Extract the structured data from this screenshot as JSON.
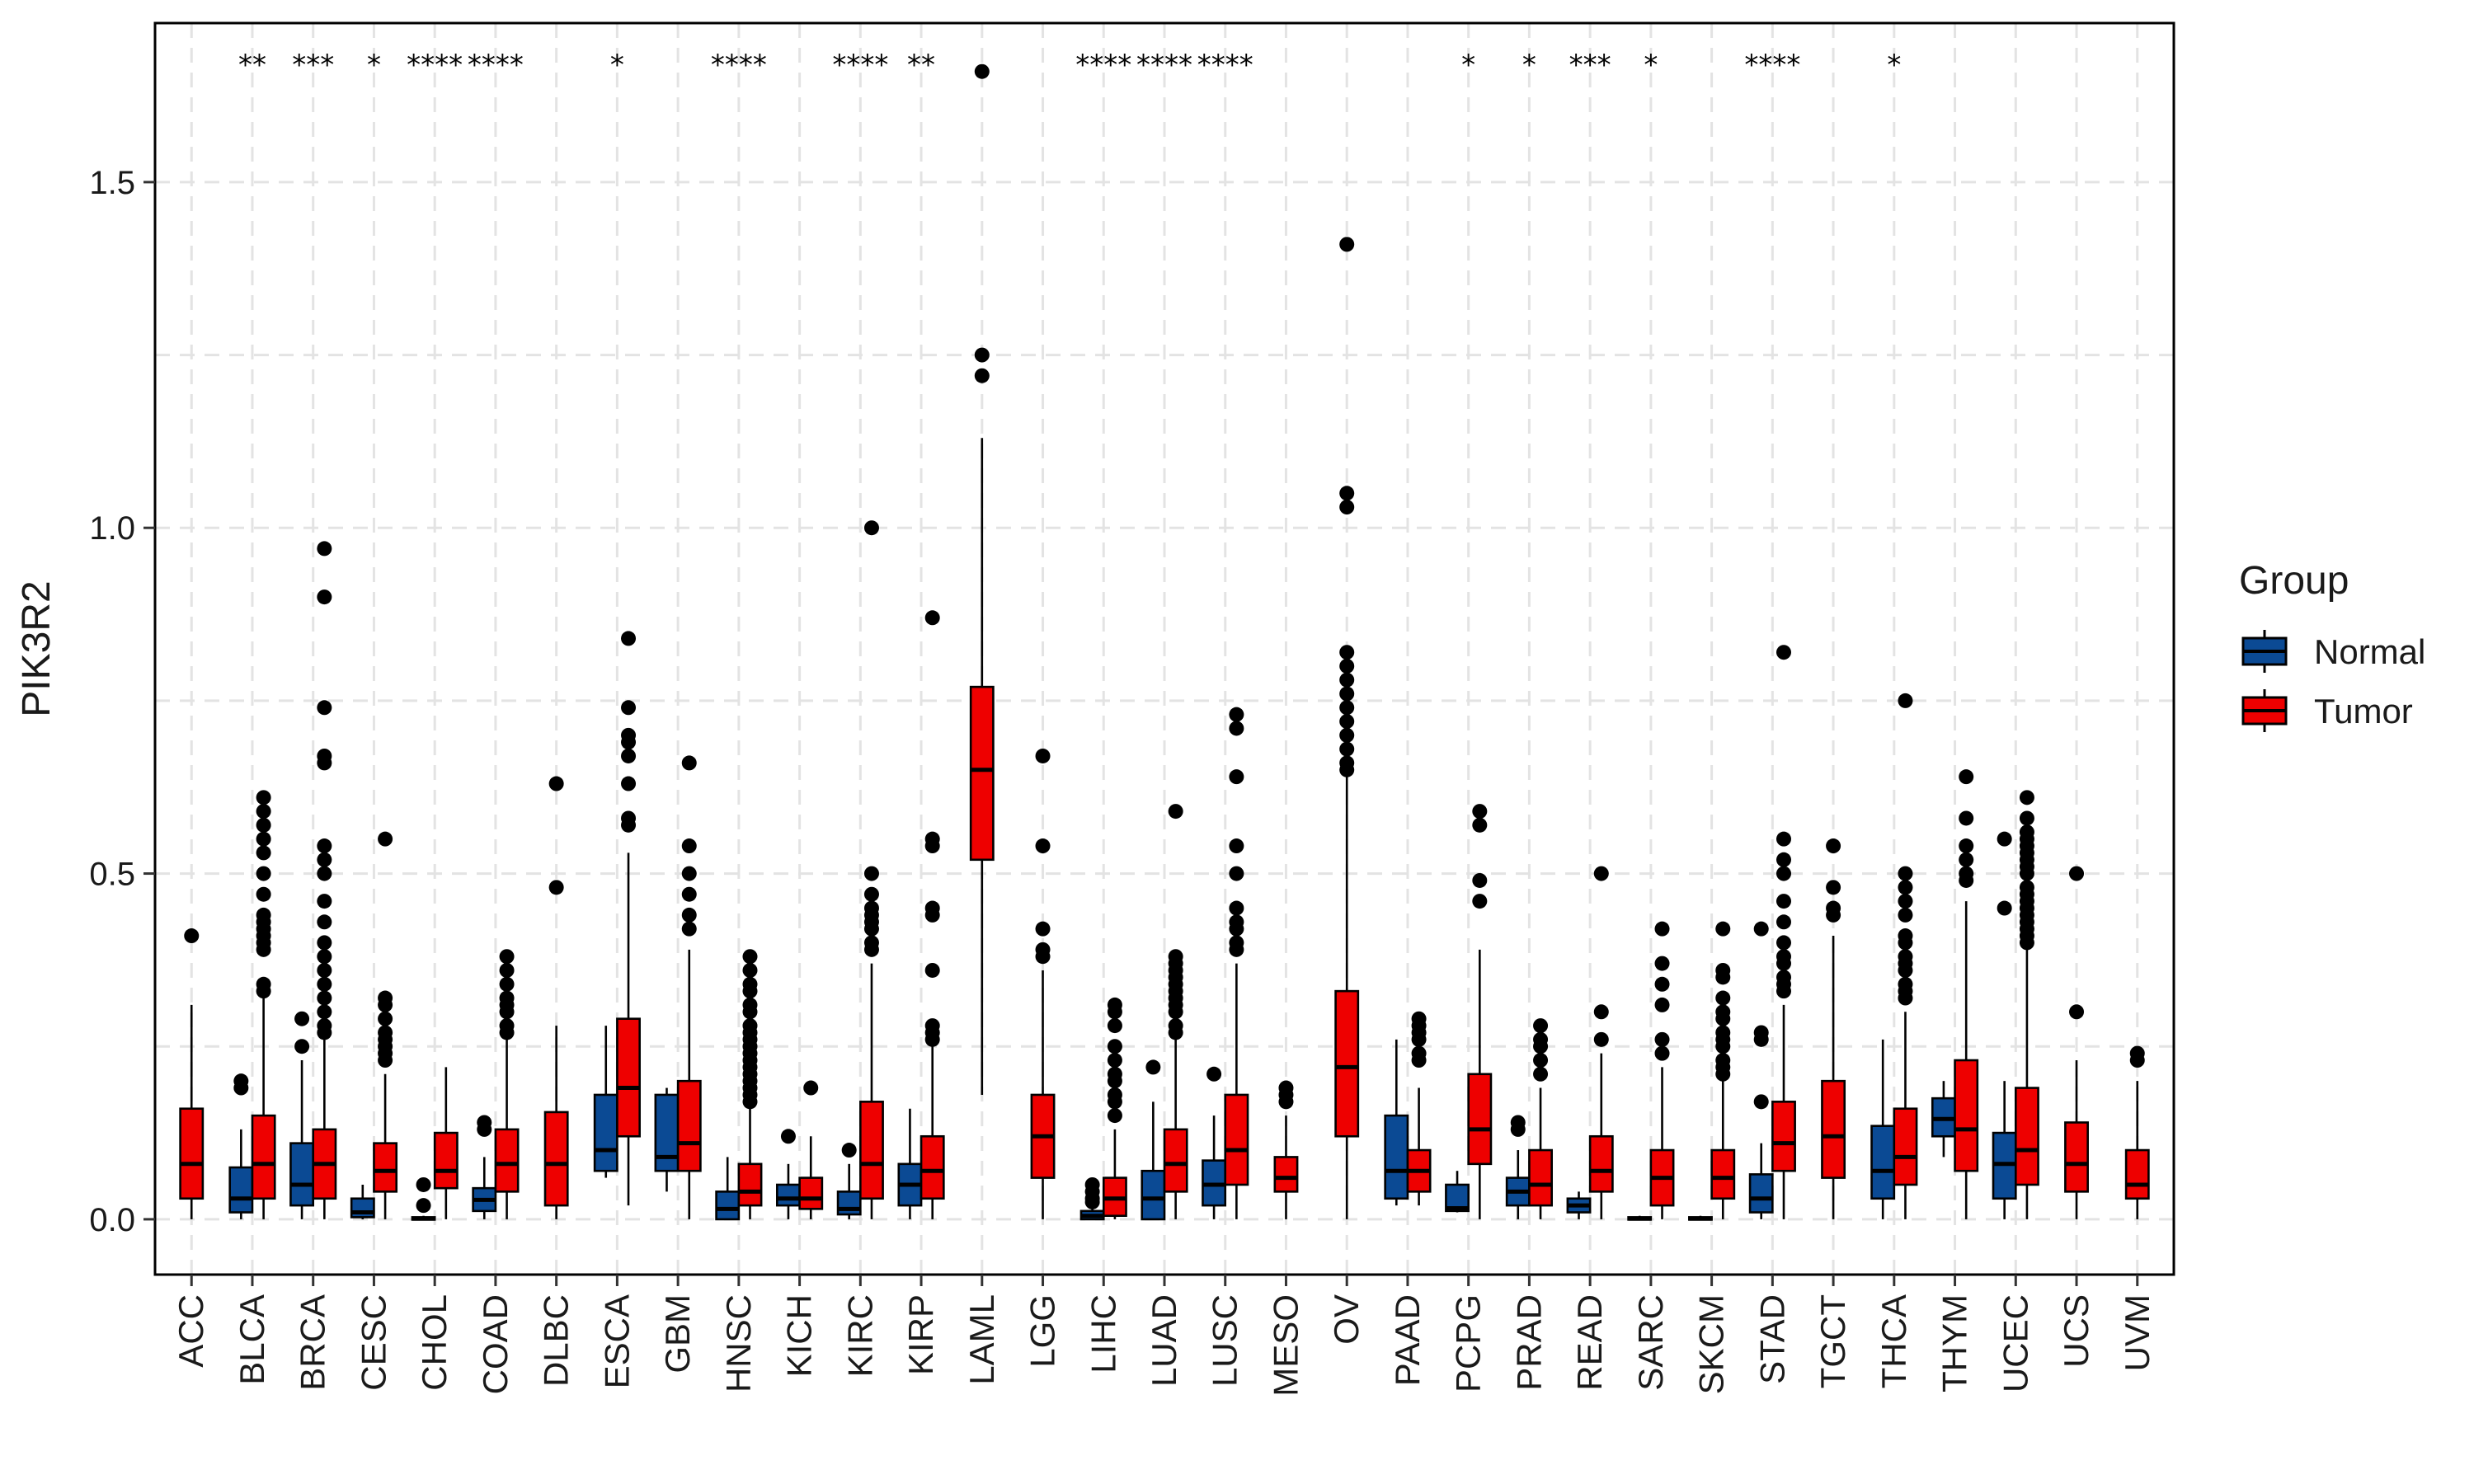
{
  "chart_data": {
    "type": "boxplot",
    "title": "",
    "xlabel": "",
    "ylabel": "PIK3R2",
    "ylim": [
      -0.08,
      1.73
    ],
    "yticks": [
      0.0,
      0.5,
      1.0,
      1.5
    ],
    "ytick_labels": [
      "0.0",
      "0.5",
      "1.0",
      "1.5"
    ],
    "grid": true,
    "legend": {
      "title": "Group",
      "position": "right",
      "entries": [
        {
          "name": "Normal",
          "color": "#0b4a94"
        },
        {
          "name": "Tumor",
          "color": "#ee0000"
        }
      ]
    },
    "categories": [
      {
        "name": "ACC",
        "sig": "",
        "normal": null,
        "tumor": {
          "q1": 0.03,
          "med": 0.08,
          "q3": 0.16,
          "lo": 0.0,
          "hi": 0.31,
          "out": [
            0.41
          ]
        }
      },
      {
        "name": "BLCA",
        "sig": "**",
        "normal": {
          "q1": 0.01,
          "med": 0.03,
          "q3": 0.075,
          "lo": 0.0,
          "hi": 0.13,
          "out": [
            0.19,
            0.2
          ]
        },
        "tumor": {
          "q1": 0.03,
          "med": 0.08,
          "q3": 0.15,
          "lo": 0.0,
          "hi": 0.32,
          "out": [
            0.33,
            0.34,
            0.39,
            0.4,
            0.41,
            0.42,
            0.43,
            0.44,
            0.47,
            0.5,
            0.53,
            0.55,
            0.57,
            0.59,
            0.61
          ]
        }
      },
      {
        "name": "BRCA",
        "sig": "***",
        "normal": {
          "q1": 0.02,
          "med": 0.05,
          "q3": 0.11,
          "lo": 0.0,
          "hi": 0.23,
          "out": [
            0.25,
            0.29
          ]
        },
        "tumor": {
          "q1": 0.03,
          "med": 0.08,
          "q3": 0.13,
          "lo": 0.0,
          "hi": 0.26,
          "out": [
            0.27,
            0.28,
            0.3,
            0.32,
            0.34,
            0.36,
            0.38,
            0.4,
            0.43,
            0.46,
            0.5,
            0.52,
            0.54,
            0.66,
            0.67,
            0.74,
            0.9,
            0.97
          ]
        }
      },
      {
        "name": "CESC",
        "sig": "*",
        "normal": {
          "q1": 0.003,
          "med": 0.01,
          "q3": 0.03,
          "lo": 0.0,
          "hi": 0.05,
          "out": []
        },
        "tumor": {
          "q1": 0.04,
          "med": 0.07,
          "q3": 0.11,
          "lo": 0.0,
          "hi": 0.21,
          "out": [
            0.23,
            0.24,
            0.25,
            0.26,
            0.27,
            0.29,
            0.31,
            0.32,
            0.55
          ]
        }
      },
      {
        "name": "CHOL",
        "sig": "****",
        "normal": {
          "q1": 0.0,
          "med": 0.001,
          "q3": 0.003,
          "lo": 0.0,
          "hi": 0.005,
          "out": [
            0.02,
            0.05
          ]
        },
        "tumor": {
          "q1": 0.045,
          "med": 0.07,
          "q3": 0.125,
          "lo": 0.0,
          "hi": 0.22,
          "out": []
        }
      },
      {
        "name": "COAD",
        "sig": "****",
        "normal": {
          "q1": 0.012,
          "med": 0.028,
          "q3": 0.045,
          "lo": 0.0,
          "hi": 0.09,
          "out": [
            0.13,
            0.14
          ]
        },
        "tumor": {
          "q1": 0.04,
          "med": 0.08,
          "q3": 0.13,
          "lo": 0.0,
          "hi": 0.26,
          "out": [
            0.27,
            0.28,
            0.3,
            0.31,
            0.32,
            0.34,
            0.36,
            0.38
          ]
        }
      },
      {
        "name": "DLBC",
        "sig": "",
        "normal": null,
        "tumor": {
          "q1": 0.02,
          "med": 0.08,
          "q3": 0.155,
          "lo": 0.0,
          "hi": 0.28,
          "out": [
            0.48,
            0.63
          ]
        }
      },
      {
        "name": "ESCA",
        "sig": "*",
        "normal": {
          "q1": 0.07,
          "med": 0.1,
          "q3": 0.18,
          "lo": 0.06,
          "hi": 0.28,
          "out": []
        },
        "tumor": {
          "q1": 0.12,
          "med": 0.19,
          "q3": 0.29,
          "lo": 0.02,
          "hi": 0.53,
          "out": [
            0.57,
            0.58,
            0.63,
            0.67,
            0.69,
            0.7,
            0.74,
            0.84
          ]
        }
      },
      {
        "name": "GBM",
        "sig": "",
        "normal": {
          "q1": 0.07,
          "med": 0.09,
          "q3": 0.18,
          "lo": 0.04,
          "hi": 0.19,
          "out": []
        },
        "tumor": {
          "q1": 0.07,
          "med": 0.11,
          "q3": 0.2,
          "lo": 0.0,
          "hi": 0.39,
          "out": [
            0.42,
            0.44,
            0.47,
            0.5,
            0.54,
            0.66
          ]
        }
      },
      {
        "name": "HNSC",
        "sig": "****",
        "normal": {
          "q1": 0.0,
          "med": 0.015,
          "q3": 0.04,
          "lo": 0.0,
          "hi": 0.09,
          "out": []
        },
        "tumor": {
          "q1": 0.02,
          "med": 0.04,
          "q3": 0.08,
          "lo": 0.0,
          "hi": 0.16,
          "out": [
            0.17,
            0.18,
            0.19,
            0.2,
            0.21,
            0.22,
            0.23,
            0.24,
            0.25,
            0.26,
            0.27,
            0.28,
            0.3,
            0.31,
            0.33,
            0.34,
            0.36,
            0.38
          ]
        }
      },
      {
        "name": "KICH",
        "sig": "",
        "normal": {
          "q1": 0.02,
          "med": 0.03,
          "q3": 0.05,
          "lo": 0.0,
          "hi": 0.08,
          "out": [
            0.12
          ]
        },
        "tumor": {
          "q1": 0.015,
          "med": 0.03,
          "q3": 0.06,
          "lo": 0.0,
          "hi": 0.12,
          "out": [
            0.19
          ]
        }
      },
      {
        "name": "KIRC",
        "sig": "****",
        "normal": {
          "q1": 0.007,
          "med": 0.015,
          "q3": 0.04,
          "lo": 0.0,
          "hi": 0.08,
          "out": [
            0.1
          ]
        },
        "tumor": {
          "q1": 0.03,
          "med": 0.08,
          "q3": 0.17,
          "lo": 0.0,
          "hi": 0.37,
          "out": [
            0.39,
            0.4,
            0.42,
            0.43,
            0.44,
            0.45,
            0.47,
            0.5,
            1.0
          ]
        }
      },
      {
        "name": "KIRP",
        "sig": "**",
        "normal": {
          "q1": 0.02,
          "med": 0.05,
          "q3": 0.08,
          "lo": 0.0,
          "hi": 0.16,
          "out": []
        },
        "tumor": {
          "q1": 0.03,
          "med": 0.07,
          "q3": 0.12,
          "lo": 0.0,
          "hi": 0.25,
          "out": [
            0.26,
            0.27,
            0.28,
            0.36,
            0.44,
            0.45,
            0.54,
            0.55,
            0.87
          ]
        }
      },
      {
        "name": "LAML",
        "sig": "",
        "normal": null,
        "tumor": {
          "q1": 0.52,
          "med": 0.65,
          "q3": 0.77,
          "lo": 0.18,
          "hi": 1.13,
          "out": [
            1.22,
            1.25,
            1.66
          ]
        }
      },
      {
        "name": "LGG",
        "sig": "",
        "normal": null,
        "tumor": {
          "q1": 0.06,
          "med": 0.12,
          "q3": 0.18,
          "lo": 0.0,
          "hi": 0.36,
          "out": [
            0.38,
            0.39,
            0.42,
            0.54,
            0.67
          ]
        }
      },
      {
        "name": "LIHC",
        "sig": "****",
        "normal": {
          "q1": 0.0,
          "med": 0.005,
          "q3": 0.012,
          "lo": 0.0,
          "hi": 0.02,
          "out": [
            0.025,
            0.03,
            0.04,
            0.05
          ]
        },
        "tumor": {
          "q1": 0.005,
          "med": 0.03,
          "q3": 0.06,
          "lo": 0.0,
          "hi": 0.13,
          "out": [
            0.15,
            0.17,
            0.18,
            0.2,
            0.21,
            0.23,
            0.25,
            0.28,
            0.3,
            0.31
          ]
        }
      },
      {
        "name": "LUAD",
        "sig": "****",
        "normal": {
          "q1": 0.0,
          "med": 0.03,
          "q3": 0.07,
          "lo": 0.0,
          "hi": 0.17,
          "out": [
            0.22
          ]
        },
        "tumor": {
          "q1": 0.04,
          "med": 0.08,
          "q3": 0.13,
          "lo": 0.0,
          "hi": 0.26,
          "out": [
            0.27,
            0.28,
            0.3,
            0.31,
            0.32,
            0.33,
            0.34,
            0.35,
            0.36,
            0.37,
            0.38,
            0.59
          ]
        }
      },
      {
        "name": "LUSC",
        "sig": "****",
        "normal": {
          "q1": 0.02,
          "med": 0.05,
          "q3": 0.085,
          "lo": 0.0,
          "hi": 0.15,
          "out": [
            0.21
          ]
        },
        "tumor": {
          "q1": 0.05,
          "med": 0.1,
          "q3": 0.18,
          "lo": 0.0,
          "hi": 0.37,
          "out": [
            0.39,
            0.4,
            0.42,
            0.43,
            0.45,
            0.5,
            0.54,
            0.64,
            0.71,
            0.73
          ]
        }
      },
      {
        "name": "MESO",
        "sig": "",
        "normal": null,
        "tumor": {
          "q1": 0.04,
          "med": 0.06,
          "q3": 0.09,
          "lo": 0.0,
          "hi": 0.15,
          "out": [
            0.17,
            0.18,
            0.19
          ]
        }
      },
      {
        "name": "OV",
        "sig": "",
        "normal": null,
        "tumor": {
          "q1": 0.12,
          "med": 0.22,
          "q3": 0.33,
          "lo": 0.0,
          "hi": 0.64,
          "out": [
            0.65,
            0.66,
            0.68,
            0.7,
            0.72,
            0.74,
            0.76,
            0.78,
            0.8,
            0.82,
            1.03,
            1.05,
            1.41
          ]
        }
      },
      {
        "name": "PAAD",
        "sig": "",
        "normal": {
          "q1": 0.03,
          "med": 0.07,
          "q3": 0.15,
          "lo": 0.02,
          "hi": 0.26,
          "out": []
        },
        "tumor": {
          "q1": 0.04,
          "med": 0.07,
          "q3": 0.1,
          "lo": 0.02,
          "hi": 0.19,
          "out": [
            0.23,
            0.24,
            0.26,
            0.27,
            0.28,
            0.29
          ]
        }
      },
      {
        "name": "PCPG",
        "sig": "*",
        "normal": {
          "q1": 0.012,
          "med": 0.016,
          "q3": 0.05,
          "lo": 0.01,
          "hi": 0.07,
          "out": []
        },
        "tumor": {
          "q1": 0.08,
          "med": 0.13,
          "q3": 0.21,
          "lo": 0.0,
          "hi": 0.39,
          "out": [
            0.46,
            0.49,
            0.57,
            0.59
          ]
        }
      },
      {
        "name": "PRAD",
        "sig": "*",
        "normal": {
          "q1": 0.02,
          "med": 0.04,
          "q3": 0.06,
          "lo": 0.0,
          "hi": 0.1,
          "out": [
            0.13,
            0.14
          ]
        },
        "tumor": {
          "q1": 0.02,
          "med": 0.05,
          "q3": 0.1,
          "lo": 0.0,
          "hi": 0.19,
          "out": [
            0.21,
            0.23,
            0.25,
            0.26,
            0.28
          ]
        }
      },
      {
        "name": "READ",
        "sig": "***",
        "normal": {
          "q1": 0.01,
          "med": 0.02,
          "q3": 0.03,
          "lo": 0.0,
          "hi": 0.04,
          "out": []
        },
        "tumor": {
          "q1": 0.04,
          "med": 0.07,
          "q3": 0.12,
          "lo": 0.0,
          "hi": 0.24,
          "out": [
            0.26,
            0.3,
            0.5
          ]
        }
      },
      {
        "name": "SARC",
        "sig": "*",
        "normal": {
          "q1": 0.0,
          "med": 0.001,
          "q3": 0.003,
          "lo": 0.0,
          "hi": 0.005,
          "out": []
        },
        "tumor": {
          "q1": 0.02,
          "med": 0.06,
          "q3": 0.1,
          "lo": 0.0,
          "hi": 0.22,
          "out": [
            0.24,
            0.26,
            0.31,
            0.34,
            0.37,
            0.42
          ]
        }
      },
      {
        "name": "SKCM",
        "sig": "",
        "normal": {
          "q1": 0.0,
          "med": 0.001,
          "q3": 0.003,
          "lo": 0.0,
          "hi": 0.005,
          "out": []
        },
        "tumor": {
          "q1": 0.03,
          "med": 0.06,
          "q3": 0.1,
          "lo": 0.0,
          "hi": 0.2,
          "out": [
            0.21,
            0.22,
            0.23,
            0.25,
            0.26,
            0.27,
            0.29,
            0.3,
            0.32,
            0.35,
            0.36,
            0.42
          ]
        }
      },
      {
        "name": "STAD",
        "sig": "****",
        "normal": {
          "q1": 0.01,
          "med": 0.03,
          "q3": 0.065,
          "lo": 0.0,
          "hi": 0.11,
          "out": [
            0.17,
            0.26,
            0.27,
            0.42
          ]
        },
        "tumor": {
          "q1": 0.07,
          "med": 0.11,
          "q3": 0.17,
          "lo": 0.0,
          "hi": 0.31,
          "out": [
            0.33,
            0.34,
            0.35,
            0.37,
            0.38,
            0.4,
            0.43,
            0.46,
            0.5,
            0.52,
            0.55,
            0.82
          ]
        }
      },
      {
        "name": "TGCT",
        "sig": "",
        "normal": null,
        "tumor": {
          "q1": 0.06,
          "med": 0.12,
          "q3": 0.2,
          "lo": 0.0,
          "hi": 0.41,
          "out": [
            0.44,
            0.45,
            0.48,
            0.54
          ]
        }
      },
      {
        "name": "THCA",
        "sig": "*",
        "normal": {
          "q1": 0.03,
          "med": 0.07,
          "q3": 0.135,
          "lo": 0.0,
          "hi": 0.26,
          "out": []
        },
        "tumor": {
          "q1": 0.05,
          "med": 0.09,
          "q3": 0.16,
          "lo": 0.0,
          "hi": 0.3,
          "out": [
            0.32,
            0.33,
            0.34,
            0.36,
            0.37,
            0.38,
            0.4,
            0.41,
            0.44,
            0.46,
            0.48,
            0.5,
            0.75
          ]
        }
      },
      {
        "name": "THYM",
        "sig": "",
        "normal": {
          "q1": 0.12,
          "med": 0.145,
          "q3": 0.175,
          "lo": 0.09,
          "hi": 0.2,
          "out": []
        },
        "tumor": {
          "q1": 0.07,
          "med": 0.13,
          "q3": 0.23,
          "lo": 0.0,
          "hi": 0.46,
          "out": [
            0.49,
            0.5,
            0.52,
            0.54,
            0.58,
            0.64
          ]
        }
      },
      {
        "name": "UCEC",
        "sig": "",
        "normal": {
          "q1": 0.03,
          "med": 0.08,
          "q3": 0.125,
          "lo": 0.0,
          "hi": 0.2,
          "out": [
            0.45,
            0.55
          ]
        },
        "tumor": {
          "q1": 0.05,
          "med": 0.1,
          "q3": 0.19,
          "lo": 0.0,
          "hi": 0.39,
          "out": [
            0.4,
            0.41,
            0.42,
            0.43,
            0.44,
            0.45,
            0.46,
            0.47,
            0.48,
            0.5,
            0.51,
            0.52,
            0.53,
            0.54,
            0.55,
            0.56,
            0.58,
            0.61
          ]
        }
      },
      {
        "name": "UCS",
        "sig": "",
        "normal": null,
        "tumor": {
          "q1": 0.04,
          "med": 0.08,
          "q3": 0.14,
          "lo": 0.0,
          "hi": 0.23,
          "out": [
            0.3,
            0.5
          ]
        }
      },
      {
        "name": "UVM",
        "sig": "",
        "normal": null,
        "tumor": {
          "q1": 0.03,
          "med": 0.05,
          "q3": 0.1,
          "lo": 0.0,
          "hi": 0.2,
          "out": [
            0.23,
            0.24
          ]
        }
      }
    ]
  }
}
